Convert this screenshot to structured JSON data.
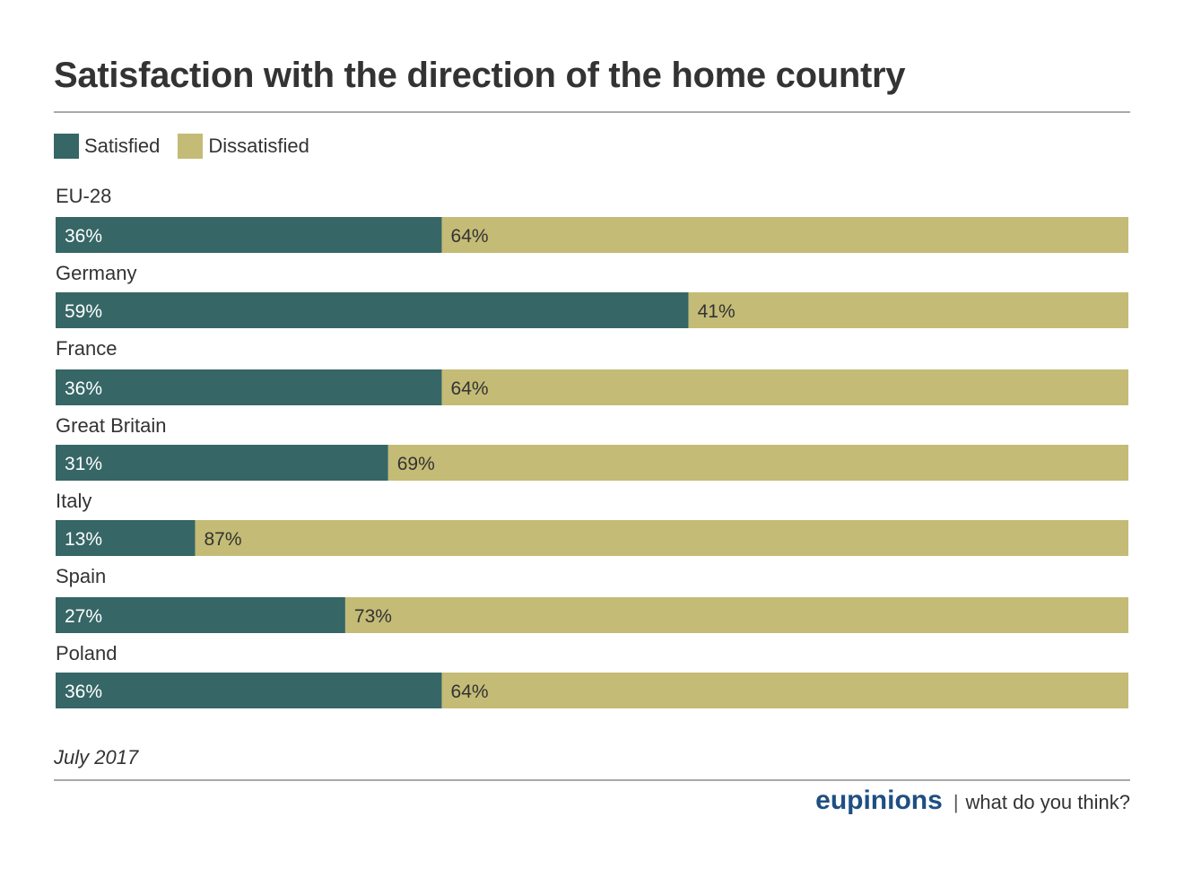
{
  "title": "Satisfaction with the direction of the home country",
  "colors": {
    "satisfied": "#366666",
    "dissatisfied": "#c4bb76",
    "brand": "#1e4f82"
  },
  "legend": [
    {
      "label": "Satisfied",
      "color": "#366666"
    },
    {
      "label": "Dissatisfied",
      "color": "#c4bb76"
    }
  ],
  "chart_data": {
    "type": "bar",
    "orientation": "horizontal",
    "stacked": true,
    "categories": [
      "EU-28",
      "Germany",
      "France",
      "Great Britain",
      "Italy",
      "Spain",
      "Poland"
    ],
    "series": [
      {
        "name": "Satisfied",
        "values": [
          36,
          59,
          36,
          31,
          13,
          27,
          36
        ]
      },
      {
        "name": "Dissatisfied",
        "values": [
          64,
          41,
          64,
          69,
          87,
          73,
          64
        ]
      }
    ],
    "xlim": [
      0,
      100
    ],
    "unit": "%",
    "legend_position": "top-left",
    "grid": false
  },
  "footer": {
    "note": "July 2017",
    "logo": "eupinions",
    "separator": "|",
    "tagline": "what do you think?"
  }
}
